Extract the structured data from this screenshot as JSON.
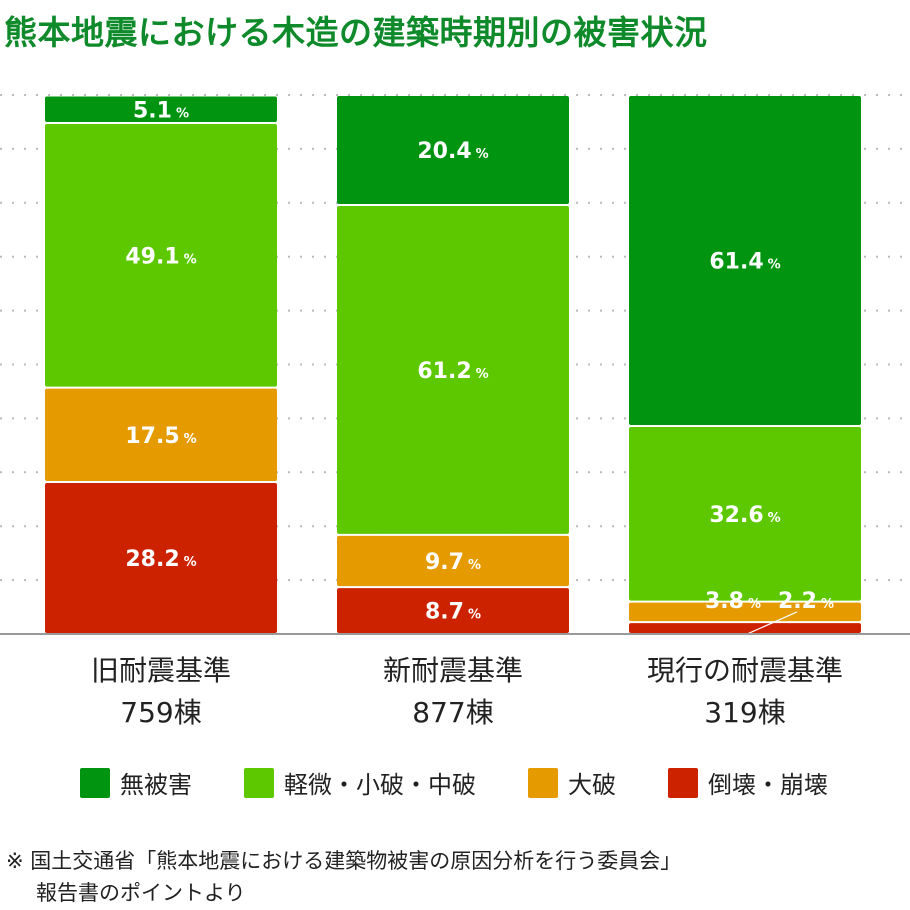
{
  "title": "熊本地震における木造の建築時期別の被害状況",
  "chart_data": {
    "type": "bar",
    "stacked": true,
    "unit": "%",
    "ylim": [
      0,
      100
    ],
    "grid": true,
    "categories": [
      {
        "name": "旧耐震基準",
        "count": "759棟"
      },
      {
        "name": "新耐震基準",
        "count": "877棟"
      },
      {
        "name": "現行の耐震基準",
        "count": "319棟"
      }
    ],
    "series": [
      {
        "name": "倒壊・崩壊",
        "color": "#cc2200",
        "values": [
          28.2,
          8.7,
          2.2
        ],
        "labels": [
          "28.2",
          "8.7",
          "2.2"
        ]
      },
      {
        "name": "大破",
        "color": "#e59a00",
        "values": [
          17.5,
          9.7,
          3.8
        ],
        "labels": [
          "17.5",
          "9.7",
          "3.8"
        ]
      },
      {
        "name": "軽微・小破・中破",
        "color": "#5dc800",
        "values": [
          49.1,
          61.2,
          32.6
        ],
        "labels": [
          "49.1",
          "61.2",
          "32.6"
        ]
      },
      {
        "name": "無被害",
        "color": "#009410",
        "values": [
          5.1,
          20.4,
          61.4
        ],
        "labels": [
          "5.1",
          "20.4",
          "61.4"
        ]
      }
    ]
  },
  "legend_order": [
    3,
    2,
    1,
    0
  ],
  "source": {
    "line1": "※ 国土交通省「熊本地震における建築物被害の原因分析を行う委員会」",
    "line2": "報告書のポイントより"
  }
}
